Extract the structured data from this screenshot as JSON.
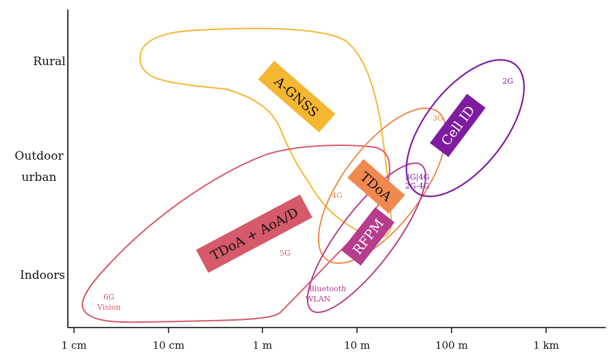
{
  "chart_data": {
    "type": "region-diagram",
    "xlabel": "",
    "ylabel": "",
    "x_scale": "log",
    "x_ticks": [
      "1 cm",
      "10 cm",
      "1 m",
      "10 m",
      "100 m",
      "1 km"
    ],
    "y_categories": [
      "Indoors",
      "Outdoor urban",
      "Rural"
    ],
    "y_category_lines": {
      "Indoors": [
        "Indoors"
      ],
      "Outdoor urban": [
        "Outdoor",
        "urban"
      ],
      "Rural": [
        "Rural"
      ]
    },
    "colors": {
      "agnss": "#F5B731",
      "tdoa_aoad": "#D65A6A",
      "tdoa": "#F0894E",
      "rfpm": "#B63C8C",
      "cellid": "#7E1BA0",
      "text_dark": "#111111",
      "text_light": "#ffffff"
    },
    "regions": [
      {
        "key": "agnss",
        "label": "A-GNSS",
        "color": "#F5B731"
      },
      {
        "key": "tdoa_aoad",
        "label": "TDoA + AoA/D",
        "color": "#D65A6A"
      },
      {
        "key": "tdoa",
        "label": "TDoA",
        "color": "#F0894E"
      },
      {
        "key": "rfpm",
        "label": "RFPM",
        "color": "#B63C8C"
      },
      {
        "key": "cellid",
        "label": "Cell ID",
        "color": "#7E1BA0"
      }
    ],
    "annotations": [
      {
        "key": "2g",
        "text": "2G",
        "color": "#7E1BA0"
      },
      {
        "key": "3g",
        "text": "3G",
        "color": "#F0894E"
      },
      {
        "key": "3g4g",
        "text": "3G|4G",
        "color": "#7E1BA0"
      },
      {
        "key": "2g4g",
        "text": "2G-4G",
        "color": "#7E1BA0"
      },
      {
        "key": "4g",
        "text": "4G",
        "color": "#F0894E"
      },
      {
        "key": "5g",
        "text": "5G",
        "color": "#D65A6A"
      },
      {
        "key": "6g",
        "text": "6G",
        "color": "#D65A6A"
      },
      {
        "key": "vision",
        "text": "Vision",
        "color": "#D65A6A"
      },
      {
        "key": "bluetooth",
        "text": "Bluetooth",
        "color": "#B63C8C"
      },
      {
        "key": "wlan",
        "text": "WLAN",
        "color": "#B63C8C"
      }
    ]
  }
}
